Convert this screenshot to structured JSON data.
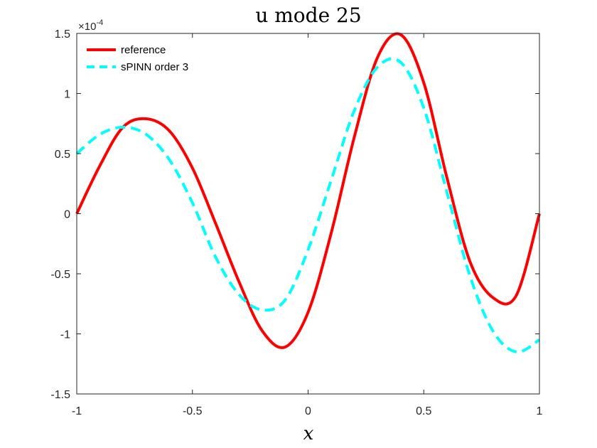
{
  "chart_data": {
    "type": "line",
    "title": "u mode 25",
    "xlabel": "x",
    "ylabel": "",
    "xlim": [
      -1,
      1
    ],
    "ylim": [
      -1.5,
      1.5
    ],
    "xticks": [
      -1,
      -0.5,
      0,
      0.5,
      1
    ],
    "xtick_labels": [
      "-1",
      "-0.5",
      "0",
      "0.5",
      "1"
    ],
    "yticks": [
      -1.5,
      -1,
      -0.5,
      0,
      0.5,
      1,
      1.5
    ],
    "ytick_labels": [
      "-1.5",
      "-1",
      "-0.5",
      "0",
      "0.5",
      "1",
      "1.5"
    ],
    "y_exponent_label": "×10",
    "y_exponent_power": "-4",
    "grid": false,
    "legend_position": "top-left",
    "series": [
      {
        "name": "reference",
        "color": "#ff0000",
        "style": "solid",
        "x": [
          -1.0,
          -0.9,
          -0.8,
          -0.7,
          -0.6,
          -0.5,
          -0.4,
          -0.3,
          -0.2,
          -0.1,
          0.0,
          0.1,
          0.2,
          0.3,
          0.4,
          0.5,
          0.6,
          0.7,
          0.8,
          0.9,
          1.0
        ],
        "y": [
          0.0,
          0.4,
          0.72,
          0.79,
          0.69,
          0.38,
          -0.08,
          -0.56,
          -0.97,
          -1.11,
          -0.82,
          -0.16,
          0.64,
          1.3,
          1.49,
          1.09,
          0.3,
          -0.4,
          -0.7,
          -0.68,
          0.0
        ]
      },
      {
        "name": "sPINN order 3",
        "color": "#00ffff",
        "style": "dashed",
        "x": [
          -1.0,
          -0.9,
          -0.8,
          -0.7,
          -0.6,
          -0.5,
          -0.4,
          -0.3,
          -0.2,
          -0.1,
          0.0,
          0.1,
          0.2,
          0.3,
          0.4,
          0.5,
          0.6,
          0.7,
          0.8,
          0.9,
          1.0
        ],
        "y": [
          0.5,
          0.66,
          0.72,
          0.66,
          0.45,
          0.09,
          -0.36,
          -0.67,
          -0.8,
          -0.72,
          -0.3,
          0.28,
          0.86,
          1.22,
          1.26,
          0.88,
          0.18,
          -0.52,
          -0.98,
          -1.15,
          -1.05
        ]
      }
    ]
  }
}
